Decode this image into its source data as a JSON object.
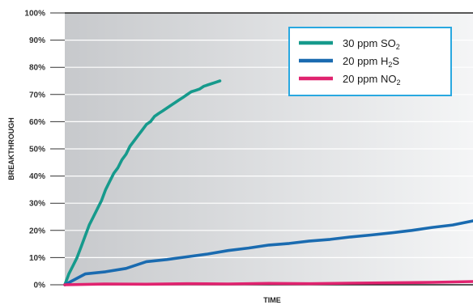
{
  "chart_data": {
    "type": "line",
    "xlabel": "TIME",
    "ylabel": "BREAKTHROUGH",
    "ylim": [
      0,
      100
    ],
    "y_ticks": [
      "0%",
      "10%",
      "20%",
      "30%",
      "40%",
      "50%",
      "60%",
      "70%",
      "80%",
      "90%",
      "100%"
    ],
    "x_range": [
      0,
      100
    ],
    "x_tick_labels": "none",
    "grid": "horizontal",
    "background_gradient": [
      "#c7c9cc",
      "#f4f5f6"
    ],
    "legend_position": "top-right",
    "legend_border_color": "#29a8e0",
    "series": [
      {
        "name": "30 ppm SO",
        "subscript": "2",
        "color": "#169a8c",
        "x": [
          0,
          1,
          2,
          3,
          4,
          5,
          6,
          7,
          8,
          9,
          10,
          11,
          12,
          13,
          14,
          15,
          16,
          17,
          18,
          19,
          20,
          21,
          22,
          23,
          24,
          25,
          26,
          27,
          28,
          29,
          30,
          31,
          32,
          33,
          34,
          35,
          36,
          37,
          38
        ],
        "values": [
          0,
          4,
          7,
          10,
          14,
          18,
          22,
          25,
          28,
          31,
          35,
          38,
          41,
          43,
          46,
          48,
          51,
          53,
          55,
          57,
          59,
          60,
          62,
          63,
          64,
          65,
          66,
          67,
          68,
          69,
          70,
          71,
          71.5,
          72,
          73,
          73.5,
          74,
          74.5,
          75
        ]
      },
      {
        "name": "20 ppm H",
        "suffix": "S",
        "subscript": "2",
        "color": "#1a6bb0",
        "x": [
          0,
          5,
          10,
          15,
          20,
          25,
          30,
          35,
          40,
          45,
          50,
          55,
          60,
          65,
          70,
          75,
          80,
          85,
          90,
          95,
          100
        ],
        "values": [
          0,
          4,
          4.8,
          6,
          8.5,
          9.3,
          10.3,
          11.3,
          12.6,
          13.5,
          14.6,
          15.2,
          16.1,
          16.7,
          17.6,
          18.3,
          19.1,
          20,
          21.1,
          22,
          23.5
        ]
      },
      {
        "name": "20 ppm NO",
        "subscript": "2",
        "color": "#e0236f",
        "x": [
          0,
          10,
          20,
          30,
          40,
          50,
          60,
          70,
          80,
          90,
          100
        ],
        "values": [
          0,
          0.3,
          0.2,
          0.4,
          0.3,
          0.5,
          0.4,
          0.6,
          0.7,
          0.9,
          1.2
        ]
      }
    ]
  }
}
